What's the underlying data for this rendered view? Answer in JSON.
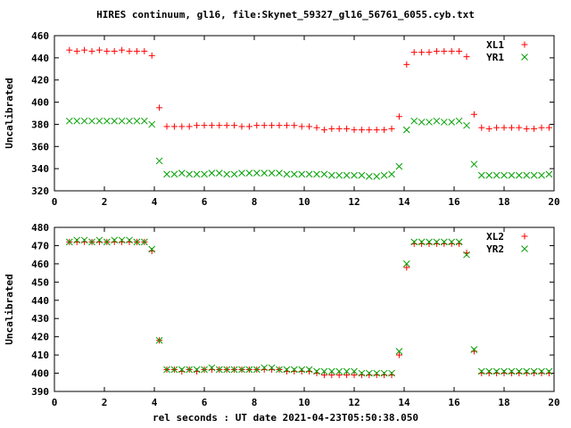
{
  "title": "HIRES continuum, gl16, file:Skynet_59327_gl16_56761_6055.cyb.txt",
  "chart_data": [
    {
      "type": "scatter",
      "ylabel": "Uncalibrated",
      "xlim": [
        0,
        20
      ],
      "ylim": [
        320,
        460
      ],
      "xticks": [
        0,
        2,
        4,
        6,
        8,
        10,
        12,
        14,
        16,
        18,
        20
      ],
      "yticks": [
        320,
        340,
        360,
        380,
        400,
        420,
        440,
        460
      ],
      "legend_position": "top-right",
      "x": [
        0.6,
        0.9,
        1.2,
        1.5,
        1.8,
        2.1,
        2.4,
        2.7,
        3.0,
        3.3,
        3.6,
        3.9,
        4.2,
        4.5,
        4.8,
        5.1,
        5.4,
        5.7,
        6.0,
        6.3,
        6.6,
        6.9,
        7.2,
        7.5,
        7.8,
        8.1,
        8.4,
        8.7,
        9.0,
        9.3,
        9.6,
        9.9,
        10.2,
        10.5,
        10.8,
        11.1,
        11.4,
        11.7,
        12.0,
        12.3,
        12.6,
        12.9,
        13.2,
        13.5,
        13.8,
        14.1,
        14.4,
        14.7,
        15.0,
        15.3,
        15.6,
        15.9,
        16.2,
        16.5,
        16.8,
        17.1,
        17.4,
        17.7,
        18.0,
        18.3,
        18.6,
        18.9,
        19.2,
        19.5,
        19.8
      ],
      "series": [
        {
          "name": "XL1",
          "marker": "plus",
          "color": "#ff0000",
          "values": [
            447,
            446,
            447,
            446,
            447,
            446,
            446,
            447,
            446,
            446,
            446,
            442,
            395,
            378,
            378,
            378,
            378,
            379,
            379,
            379,
            379,
            379,
            379,
            378,
            378,
            379,
            379,
            379,
            379,
            379,
            379,
            378,
            378,
            377,
            375,
            376,
            376,
            376,
            375,
            375,
            375,
            375,
            375,
            376,
            387,
            434,
            445,
            445,
            445,
            446,
            446,
            446,
            446,
            441,
            389,
            377,
            376,
            377,
            377,
            377,
            377,
            376,
            376,
            377,
            377
          ]
        },
        {
          "name": "YR1",
          "marker": "cross",
          "color": "#00a000",
          "values": [
            383,
            383,
            383,
            383,
            383,
            383,
            383,
            383,
            383,
            383,
            383,
            380,
            347,
            335,
            335,
            336,
            335,
            335,
            335,
            336,
            336,
            335,
            335,
            336,
            336,
            336,
            336,
            336,
            336,
            335,
            335,
            335,
            335,
            335,
            335,
            334,
            334,
            334,
            334,
            334,
            333,
            333,
            334,
            335,
            342,
            375,
            383,
            382,
            382,
            383,
            382,
            382,
            383,
            379,
            344,
            334,
            334,
            334,
            334,
            334,
            334,
            334,
            334,
            334,
            335
          ]
        }
      ]
    },
    {
      "type": "scatter",
      "ylabel": "Uncalibrated",
      "xlabel": "rel seconds : UT date 2021-04-23T05:50:38.050",
      "xlim": [
        0,
        20
      ],
      "ylim": [
        390,
        480
      ],
      "xticks": [
        0,
        2,
        4,
        6,
        8,
        10,
        12,
        14,
        16,
        18,
        20
      ],
      "yticks": [
        390,
        400,
        410,
        420,
        430,
        440,
        450,
        460,
        470,
        480
      ],
      "legend_position": "top-right",
      "x": [
        0.6,
        0.9,
        1.2,
        1.5,
        1.8,
        2.1,
        2.4,
        2.7,
        3.0,
        3.3,
        3.6,
        3.9,
        4.2,
        4.5,
        4.8,
        5.1,
        5.4,
        5.7,
        6.0,
        6.3,
        6.6,
        6.9,
        7.2,
        7.5,
        7.8,
        8.1,
        8.4,
        8.7,
        9.0,
        9.3,
        9.6,
        9.9,
        10.2,
        10.5,
        10.8,
        11.1,
        11.4,
        11.7,
        12.0,
        12.3,
        12.6,
        12.9,
        13.2,
        13.5,
        13.8,
        14.1,
        14.4,
        14.7,
        15.0,
        15.3,
        15.6,
        15.9,
        16.2,
        16.5,
        16.8,
        17.1,
        17.4,
        17.7,
        18.0,
        18.3,
        18.6,
        18.9,
        19.2,
        19.5,
        19.8
      ],
      "series": [
        {
          "name": "XL2",
          "marker": "plus",
          "color": "#ff0000",
          "values": [
            472,
            472,
            472,
            472,
            472,
            472,
            472,
            472,
            472,
            472,
            472,
            467,
            418,
            402,
            402,
            401,
            402,
            401,
            402,
            402,
            402,
            402,
            402,
            402,
            402,
            402,
            402,
            402,
            402,
            401,
            401,
            401,
            401,
            400,
            399,
            399,
            399,
            399,
            399,
            399,
            399,
            399,
            399,
            399,
            410,
            458,
            471,
            471,
            471,
            471,
            471,
            471,
            471,
            466,
            412,
            400,
            400,
            400,
            400,
            400,
            400,
            400,
            400,
            400,
            400
          ]
        },
        {
          "name": "YR2",
          "marker": "cross",
          "color": "#00a000",
          "values": [
            472,
            473,
            473,
            472,
            473,
            472,
            473,
            473,
            473,
            472,
            472,
            468,
            418,
            402,
            402,
            402,
            402,
            402,
            402,
            403,
            402,
            402,
            402,
            402,
            402,
            402,
            403,
            403,
            402,
            402,
            402,
            402,
            402,
            401,
            401,
            401,
            401,
            401,
            401,
            400,
            400,
            400,
            400,
            400,
            412,
            460,
            472,
            472,
            472,
            472,
            472,
            472,
            472,
            465,
            413,
            401,
            401,
            401,
            401,
            401,
            401,
            401,
            401,
            401,
            401
          ]
        }
      ]
    }
  ]
}
